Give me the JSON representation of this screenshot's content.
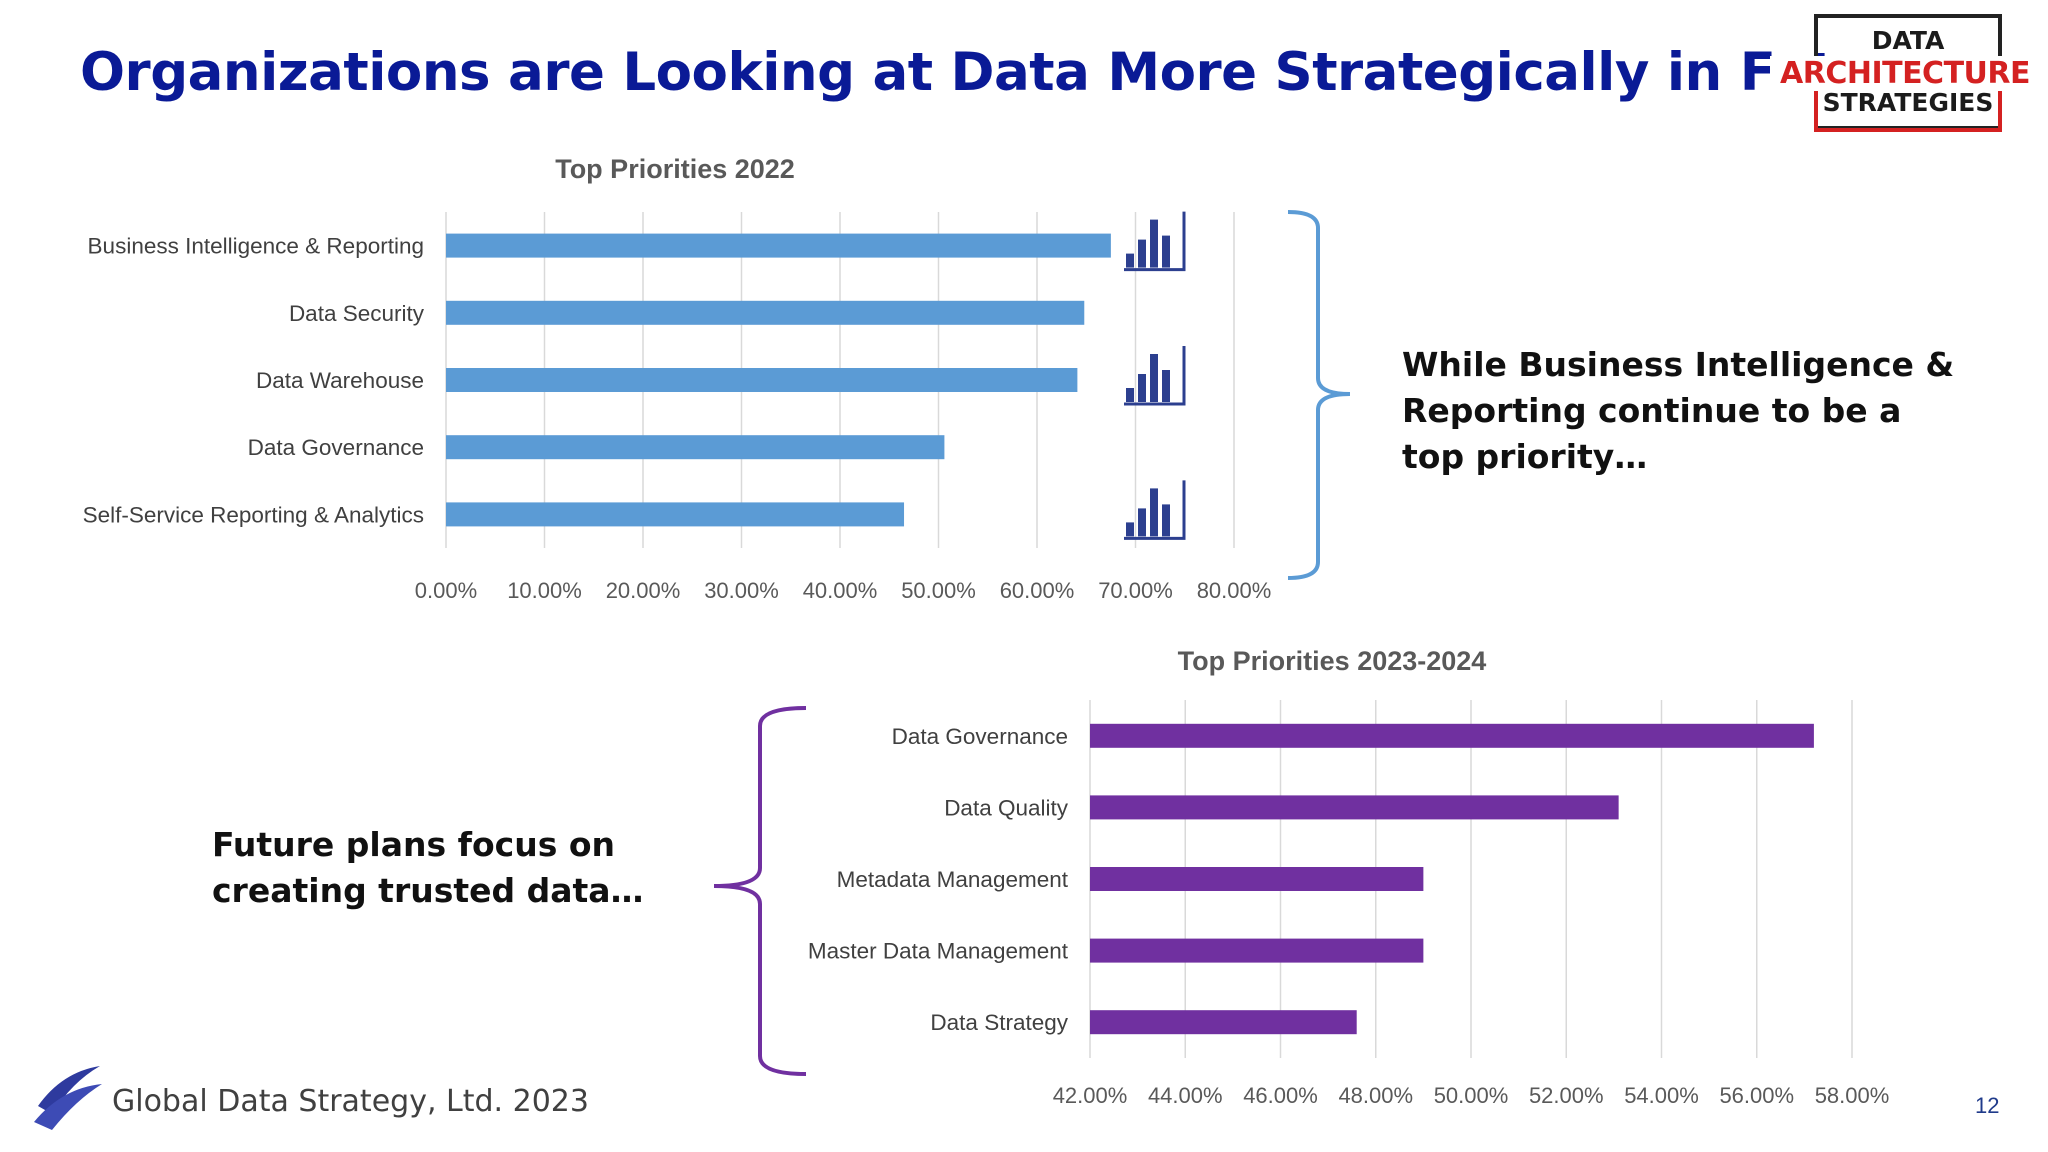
{
  "slide": {
    "title": "Organizations are Looking at Data More Strategically in Future",
    "page_number": "12",
    "footer": "Global Data Strategy, Ltd. 2023"
  },
  "logo": {
    "line1": "DATA",
    "line2": "ARCHITECTURE",
    "line3": "STRATEGIES",
    "accent_color": "#d42121"
  },
  "callouts": {
    "top_right": "While Business Intelligence & Reporting continue to be a top priority…",
    "bottom_left": "Future plans focus on creating trusted data…"
  },
  "chart_data": [
    {
      "type": "bar",
      "orientation": "horizontal",
      "title": "Top Priorities 2022",
      "categories": [
        "Business Intelligence & Reporting",
        "Data Security",
        "Data Warehouse",
        "Data Governance",
        "Self-Service Reporting & Analytics"
      ],
      "values": [
        0.675,
        0.648,
        0.641,
        0.506,
        0.465
      ],
      "xlim": [
        0,
        0.8
      ],
      "xticks": [
        "0.00%",
        "10.00%",
        "20.00%",
        "30.00%",
        "40.00%",
        "50.00%",
        "60.00%",
        "70.00%",
        "80.00%"
      ],
      "bar_color": "#5b9bd5",
      "grid": true,
      "icon_markers": [
        "bar-chart-icon",
        "",
        "bar-chart-icon",
        "",
        "bar-chart-icon"
      ]
    },
    {
      "type": "bar",
      "orientation": "horizontal",
      "title": "Top Priorities 2023-2024",
      "categories": [
        "Data Governance",
        "Data Quality",
        "Metadata Management",
        "Master Data Management",
        "Data Strategy"
      ],
      "values": [
        0.572,
        0.531,
        0.49,
        0.49,
        0.476
      ],
      "xlim": [
        0.42,
        0.58
      ],
      "xticks": [
        "42.00%",
        "44.00%",
        "46.00%",
        "48.00%",
        "50.00%",
        "52.00%",
        "54.00%",
        "56.00%",
        "58.00%"
      ],
      "bar_color": "#7030a0",
      "grid": true
    }
  ]
}
